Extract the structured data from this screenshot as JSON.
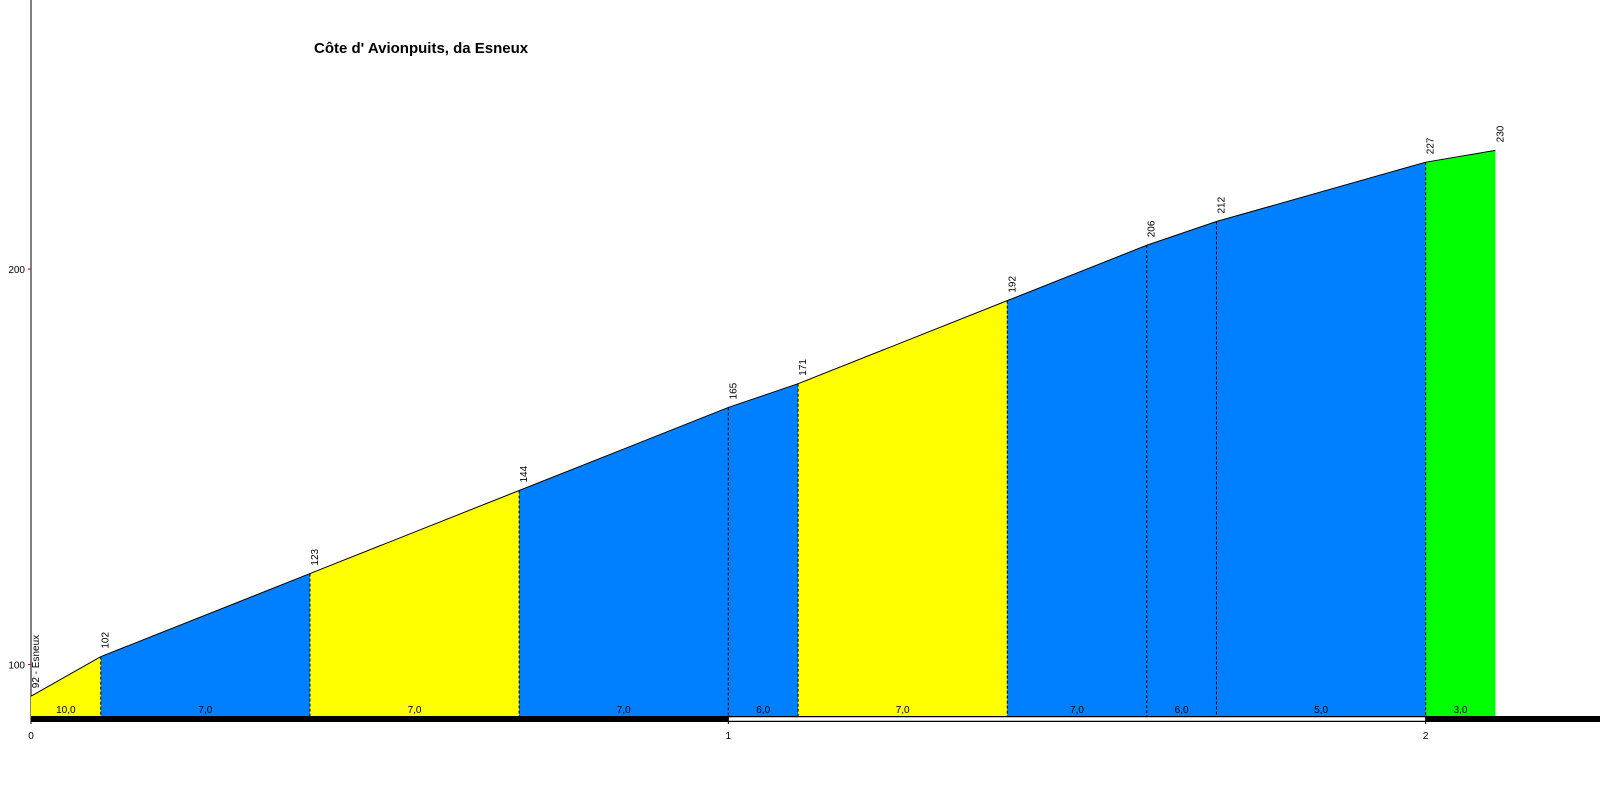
{
  "chart_data": {
    "type": "profile",
    "title": "Côte d' Avionpuits, da Esneux",
    "x": [
      0,
      0.1,
      0.4,
      0.7,
      1.0,
      1.1,
      1.4,
      1.6,
      1.7,
      2.0,
      2.1
    ],
    "values": [
      92,
      102,
      123,
      144,
      165,
      171,
      192,
      206,
      212,
      227,
      230
    ],
    "value_labels": [
      "92 - Esneux",
      "102",
      "123",
      "144",
      "165",
      "171",
      "192",
      "206",
      "212",
      "227",
      "230"
    ],
    "segments": {
      "gradients": [
        10,
        7,
        7,
        7,
        6,
        7,
        7,
        6,
        5,
        3
      ],
      "gradient_labels": [
        "10,0",
        "7,0",
        "7,0",
        "7,0",
        "6,0",
        "7,0",
        "7,0",
        "6,0",
        "5,0",
        "3,0"
      ],
      "colors": [
        "#ffff00",
        "#0080ff",
        "#ffff00",
        "#0080ff",
        "#0080ff",
        "#ffff00",
        "#0080ff",
        "#0080ff",
        "#0080ff",
        "#00ff00"
      ]
    },
    "xlim": [
      0,
      2.25
    ],
    "xticks": [
      0,
      1,
      2
    ],
    "ylim": [
      87,
      268
    ],
    "yticks": [
      100,
      200
    ]
  }
}
